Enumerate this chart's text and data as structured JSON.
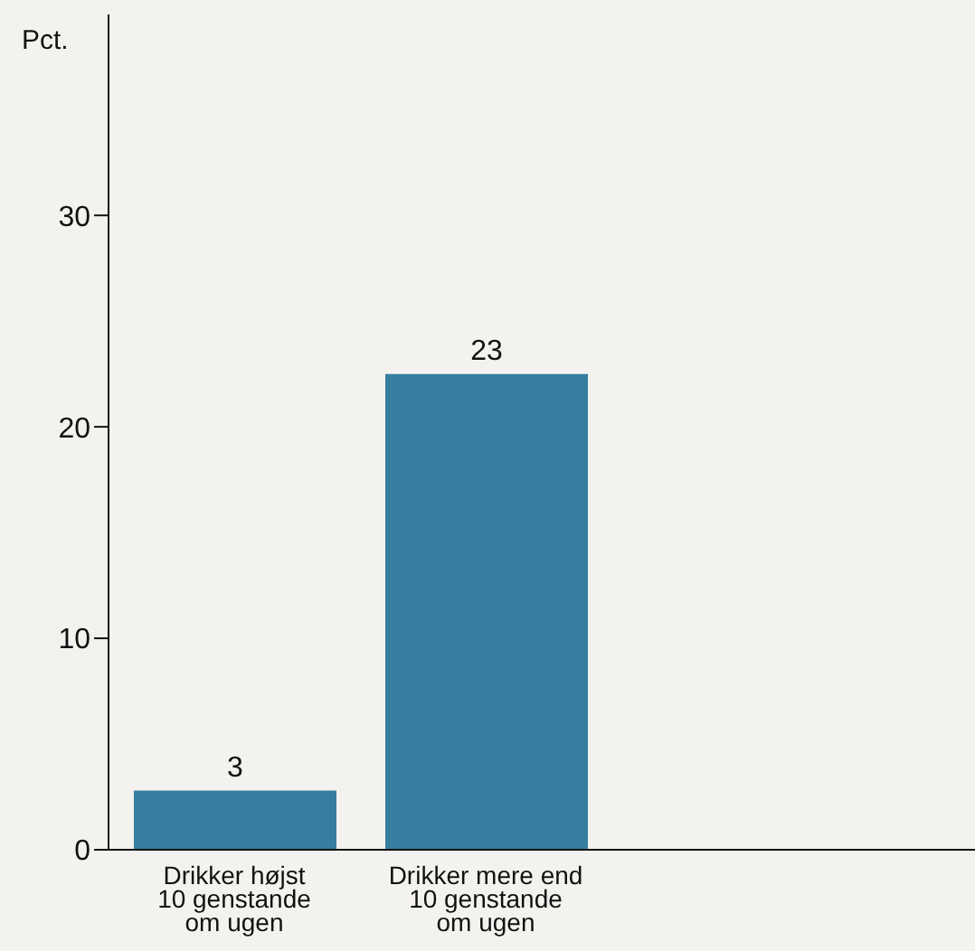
{
  "chart_data": {
    "type": "bar",
    "ylabel": "Pct.",
    "categories": [
      "Drikker højst\n10 genstande\nom ugen",
      "Drikker mere end\n10 genstande\nom ugen"
    ],
    "values": [
      2.8,
      22.5
    ],
    "value_labels": [
      "3",
      "23"
    ],
    "color": "#367ea0",
    "ylim": [
      0,
      39.5
    ],
    "yticks": [
      0,
      10,
      20,
      30
    ],
    "grid": false,
    "legend": false
  }
}
